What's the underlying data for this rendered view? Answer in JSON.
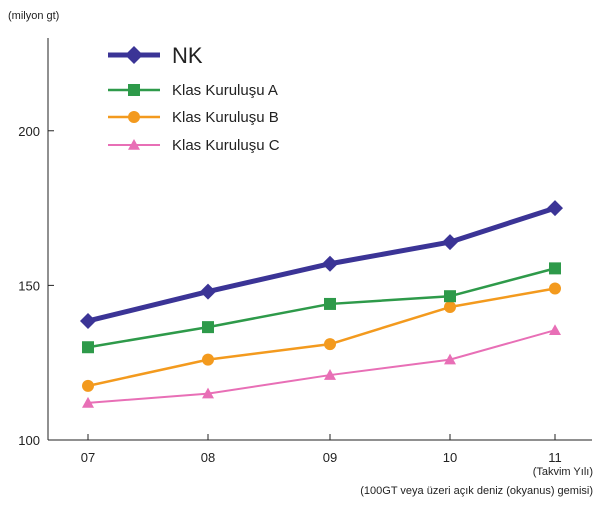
{
  "chart_data": {
    "type": "line",
    "y_unit_label": "(milyon gt)",
    "x_unit_label": "(Takvim Yılı)",
    "footnote": "(100GT veya üzeri açık deniz (okyanus) gemisi)",
    "categories": [
      "07",
      "08",
      "09",
      "10",
      "11"
    ],
    "ylim": [
      100,
      230
    ],
    "yticks": [
      100,
      150,
      200
    ],
    "grid": false,
    "legend_position": "top-left",
    "series": [
      {
        "name": "NK",
        "values": [
          138.5,
          148,
          157,
          164,
          175
        ],
        "color": "#3b3496",
        "marker": "diamond"
      },
      {
        "name": "Klas Kuruluşu A",
        "values": [
          130,
          136.5,
          144,
          146.5,
          155.5
        ],
        "color": "#2e9a4a",
        "marker": "square"
      },
      {
        "name": "Klas Kuruluşu B",
        "values": [
          117.5,
          126,
          131,
          143,
          149
        ],
        "color": "#f39a1e",
        "marker": "circle"
      },
      {
        "name": "Klas Kuruluşu C",
        "values": [
          112,
          115,
          121,
          126,
          135.5
        ],
        "color": "#e86fb6",
        "marker": "triangle"
      }
    ]
  }
}
